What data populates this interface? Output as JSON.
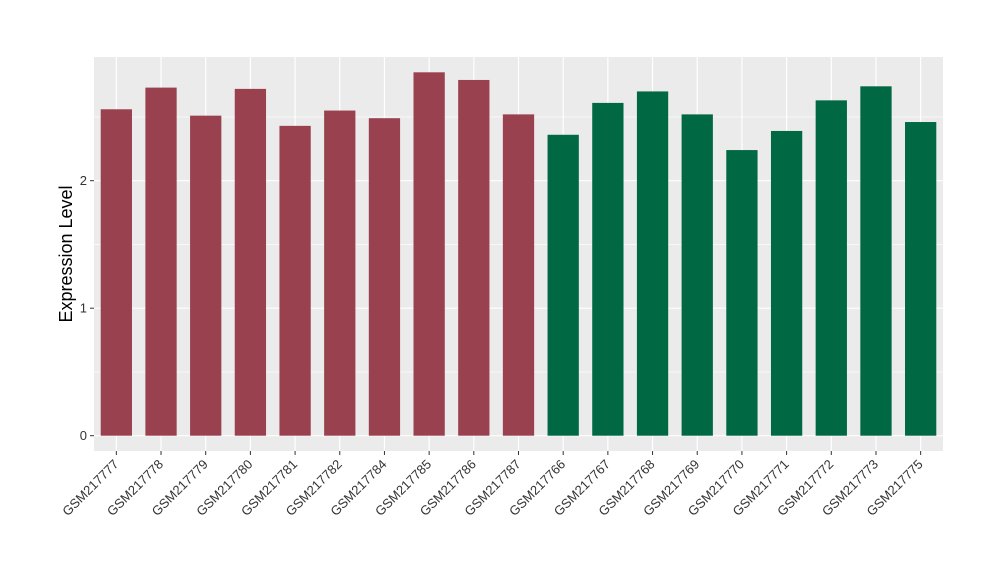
{
  "chart_data": {
    "type": "bar",
    "ylabel": "Expression Level",
    "xlabel": "",
    "ylim": [
      -0.12,
      2.97
    ],
    "yticks": [
      0,
      1,
      2
    ],
    "grid": true,
    "categories": [
      "GSM217777",
      "GSM217778",
      "GSM217779",
      "GSM217780",
      "GSM217781",
      "GSM217782",
      "GSM217784",
      "GSM217785",
      "GSM217786",
      "GSM217787",
      "GSM217766",
      "GSM217767",
      "GSM217768",
      "GSM217769",
      "GSM217770",
      "GSM217771",
      "GSM217772",
      "GSM217773",
      "GSM217775"
    ],
    "values": [
      2.56,
      2.73,
      2.51,
      2.72,
      2.43,
      2.55,
      2.49,
      2.85,
      2.79,
      2.52,
      2.36,
      2.61,
      2.7,
      2.52,
      2.24,
      2.39,
      2.63,
      2.74,
      2.46
    ],
    "bar_colors": [
      "#9a414f",
      "#9a414f",
      "#9a414f",
      "#9a414f",
      "#9a414f",
      "#9a414f",
      "#9a414f",
      "#9a414f",
      "#9a414f",
      "#9a414f",
      "#006843",
      "#006843",
      "#006843",
      "#006843",
      "#006843",
      "#006843",
      "#006843",
      "#006843",
      "#006843"
    ],
    "panel_color": "#ebebeb",
    "grid_color": "#ffffff"
  }
}
